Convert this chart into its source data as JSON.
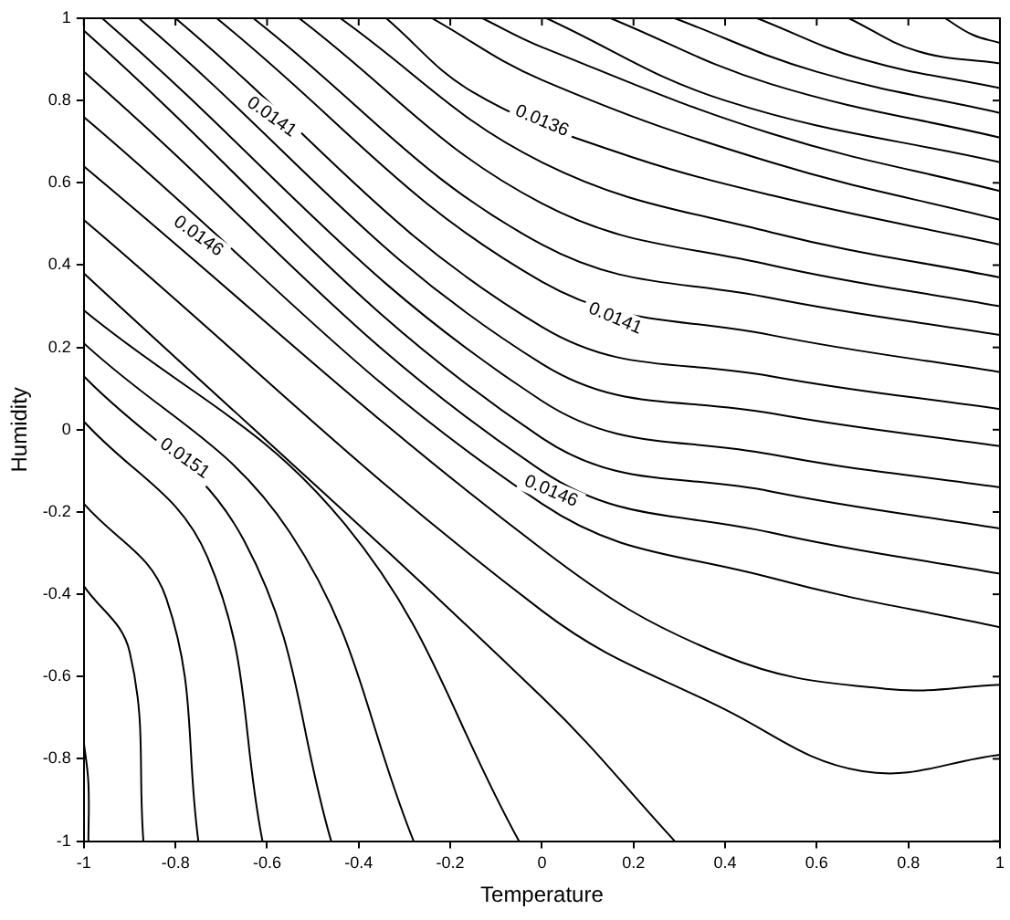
{
  "chart_data": {
    "type": "line",
    "xlabel": "Temperature",
    "ylabel": "Humidity",
    "xlim": [
      -1,
      1
    ],
    "ylim": [
      -1,
      1
    ],
    "xticks": [
      -1,
      -0.8,
      -0.6,
      -0.4,
      -0.2,
      0,
      0.2,
      0.4,
      0.6,
      0.8,
      1
    ],
    "yticks": [
      -1,
      -0.8,
      -0.6,
      -0.4,
      -0.2,
      0,
      0.2,
      0.4,
      0.6,
      0.8,
      1
    ],
    "grid": false,
    "legend": false,
    "series": [
      {
        "color": "#000000",
        "x": [
          0.88,
          0.94,
          1
        ],
        "values": [
          1,
          0.96,
          0.94
        ]
      },
      {
        "color": "#000000",
        "x": [
          0.67,
          0.82,
          1
        ],
        "values": [
          1,
          0.92,
          0.89
        ]
      },
      {
        "color": "#000000",
        "x": [
          0.47,
          0.7,
          1
        ],
        "values": [
          1,
          0.9,
          0.83
        ]
      },
      {
        "color": "#000000",
        "x": [
          0.29,
          0.6,
          1
        ],
        "values": [
          1,
          0.87,
          0.77
        ]
      },
      {
        "color": "#000000",
        "x": [
          0.15,
          0.5,
          1
        ],
        "values": [
          1,
          0.84,
          0.71
        ]
      },
      {
        "color": "#000000",
        "x": [
          0.01,
          0.4,
          1
        ],
        "values": [
          1,
          0.8,
          0.65
        ]
      },
      {
        "color": "#000000",
        "x": [
          -0.13,
          0,
          0.5,
          1
        ],
        "values": [
          1,
          0.93,
          0.72,
          0.58
        ]
      },
      {
        "color": "#000000",
        "x": [
          -0.24,
          0,
          0.5,
          1
        ],
        "values": [
          1,
          0.85,
          0.65,
          0.51
        ]
      },
      {
        "color": "#000000",
        "x": [
          -0.34,
          -0.15,
          0.15,
          0.5,
          1
        ],
        "values": [
          1,
          0.82,
          0.68,
          0.57,
          0.45
        ]
      },
      {
        "color": "#000000",
        "x": [
          -0.44,
          0,
          0.5,
          1
        ],
        "values": [
          1,
          0.65,
          0.48,
          0.37
        ]
      },
      {
        "color": "#000000",
        "x": [
          -0.53,
          0,
          0.5,
          1
        ],
        "values": [
          1,
          0.55,
          0.4,
          0.3
        ]
      },
      {
        "color": "#000000",
        "x": [
          -0.63,
          0,
          0.5,
          1
        ],
        "values": [
          1,
          0.45,
          0.32,
          0.23
        ]
      },
      {
        "color": "#000000",
        "x": [
          -0.71,
          0,
          0.5,
          1
        ],
        "values": [
          1,
          0.36,
          0.23,
          0.14
        ]
      },
      {
        "color": "#000000",
        "x": [
          -0.8,
          0,
          0.5,
          1
        ],
        "values": [
          1,
          0.25,
          0.13,
          0.05
        ]
      },
      {
        "color": "#000000",
        "x": [
          -0.88,
          0,
          0.5,
          1
        ],
        "values": [
          1,
          0.16,
          0.04,
          -0.04
        ]
      },
      {
        "color": "#000000",
        "x": [
          -0.96,
          0,
          0.5,
          1
        ],
        "values": [
          1,
          0.07,
          -0.06,
          -0.14
        ]
      },
      {
        "color": "#000000",
        "x": [
          -1,
          0,
          0.5,
          1
        ],
        "values": [
          0.97,
          -0.02,
          -0.15,
          -0.24
        ]
      },
      {
        "color": "#000000",
        "x": [
          -1,
          0,
          0.5,
          1
        ],
        "values": [
          0.87,
          -0.1,
          -0.25,
          -0.35
        ]
      },
      {
        "color": "#000000",
        "x": [
          -1,
          0,
          0.5,
          1
        ],
        "values": [
          0.76,
          -0.18,
          -0.36,
          -0.48
        ]
      },
      {
        "color": "#000000",
        "x": [
          -1,
          0,
          0.4,
          0.75,
          1
        ],
        "values": [
          0.64,
          -0.29,
          -0.55,
          -0.63,
          -0.62
        ]
      },
      {
        "color": "#000000",
        "x": [
          -1,
          0,
          0.4,
          0.7,
          1
        ],
        "values": [
          0.51,
          -0.44,
          -0.68,
          -0.83,
          -0.79
        ]
      },
      {
        "color": "#000000",
        "x": [
          -1,
          0,
          0.29
        ],
        "values": [
          0.38,
          -0.65,
          -1
        ]
      },
      {
        "color": "#000000",
        "x": [
          -1,
          -0.43,
          -0.05
        ],
        "values": [
          0.29,
          -0.23,
          -1
        ]
      },
      {
        "color": "#000000",
        "x": [
          -1,
          -0.55,
          -0.28
        ],
        "values": [
          0.21,
          -0.25,
          -1
        ]
      },
      {
        "color": "#000000",
        "x": [
          -1,
          -0.65,
          -0.46
        ],
        "values": [
          0.13,
          -0.27,
          -1
        ]
      },
      {
        "color": "#000000",
        "x": [
          -1,
          -0.73,
          -0.61
        ],
        "values": [
          0.02,
          -0.31,
          -1
        ]
      },
      {
        "color": "#000000",
        "x": [
          -1,
          -0.82,
          -0.75
        ],
        "values": [
          -0.18,
          -0.41,
          -1
        ]
      },
      {
        "color": "#000000",
        "x": [
          -1,
          -0.9,
          -0.87
        ],
        "values": [
          -0.38,
          -0.54,
          -1
        ]
      },
      {
        "color": "#000000",
        "x": [
          -1,
          -0.99,
          -0.99
        ],
        "values": [
          -0.76,
          -0.86,
          -1
        ]
      }
    ],
    "annotations": [
      {
        "text": "0.0136",
        "x": 0.0,
        "y": 0.75
      },
      {
        "text": "0.0141",
        "x": -0.59,
        "y": 0.76
      },
      {
        "text": "0.0141",
        "x": 0.16,
        "y": 0.27
      },
      {
        "text": "0.0146",
        "x": -0.75,
        "y": 0.47
      },
      {
        "text": "0.0146",
        "x": 0.02,
        "y": -0.15
      },
      {
        "text": "0.0151",
        "x": -0.78,
        "y": -0.07
      }
    ]
  }
}
